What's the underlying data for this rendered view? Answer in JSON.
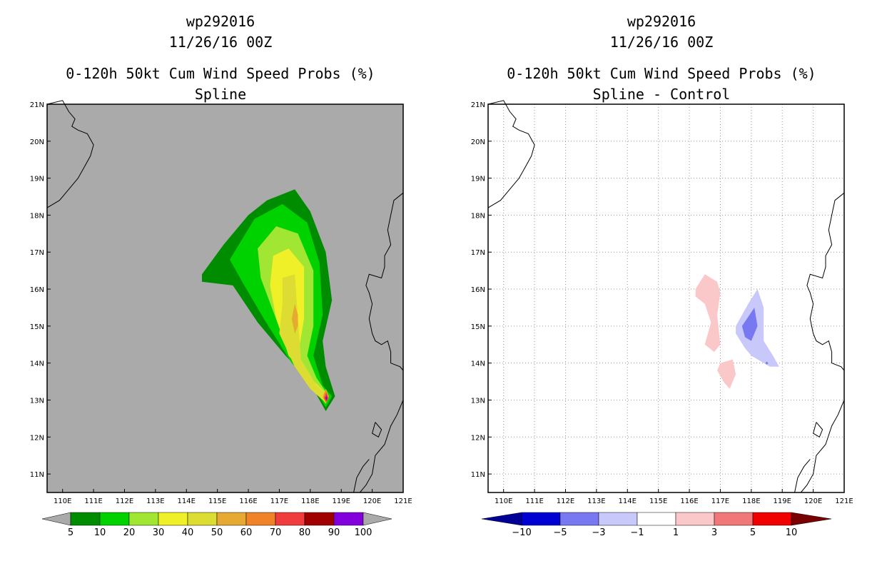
{
  "colors": {
    "prob_scale": [
      "#008c00",
      "#00d200",
      "#a0e632",
      "#f0f028",
      "#dcdc32",
      "#e6aa32",
      "#f08228",
      "#f03c3c",
      "#a00000",
      "#8200dc"
    ],
    "diff_scale": [
      "#0000d2",
      "#7878f0",
      "#c8c8fa",
      "#ffffff",
      "#fac8c8",
      "#f07878",
      "#f00000"
    ],
    "diff_low": "#000096",
    "diff_high": "#780000",
    "ocean": "#aaaaaa"
  },
  "chart_data": [
    {
      "type": "heatmap",
      "storm_id": "wp292016",
      "datetime": "11/26/16 00Z",
      "title": "0-120h 50kt Cum Wind Speed Probs (%)",
      "subtitle": "Spline",
      "xlim": [
        109.5,
        121
      ],
      "ylim": [
        10.5,
        21
      ],
      "x_ticks": [
        "110E",
        "111E",
        "112E",
        "113E",
        "114E",
        "115E",
        "116E",
        "117E",
        "118E",
        "119E",
        "120E",
        "121E"
      ],
      "y_ticks": [
        "11N",
        "12N",
        "13N",
        "14N",
        "15N",
        "16N",
        "17N",
        "18N",
        "19N",
        "20N",
        "21N"
      ],
      "grid": false,
      "contour_levels": [
        5,
        10,
        20,
        30,
        40,
        50,
        60,
        70,
        80,
        90,
        100
      ],
      "colorbar_labels": [
        "5",
        "10",
        "20",
        "30",
        "40",
        "50",
        "60",
        "70",
        "80",
        "90",
        "100"
      ],
      "regions": [
        {
          "level": 5,
          "points": [
            [
              114.5,
              16.4
            ],
            [
              115.2,
              17.2
            ],
            [
              116.0,
              18.0
            ],
            [
              116.6,
              18.4
            ],
            [
              117.5,
              18.7
            ],
            [
              118.0,
              18.1
            ],
            [
              118.5,
              17.0
            ],
            [
              118.7,
              15.7
            ],
            [
              118.4,
              14.6
            ],
            [
              118.5,
              13.9
            ],
            [
              118.8,
              13.1
            ],
            [
              118.5,
              12.7
            ],
            [
              117.9,
              13.6
            ],
            [
              117.2,
              14.2
            ],
            [
              116.3,
              15.1
            ],
            [
              115.5,
              16.1
            ],
            [
              114.5,
              16.2
            ]
          ]
        },
        {
          "level": 10,
          "points": [
            [
              115.4,
              16.8
            ],
            [
              116.2,
              17.9
            ],
            [
              117.1,
              18.3
            ],
            [
              117.9,
              17.8
            ],
            [
              118.3,
              16.7
            ],
            [
              118.4,
              15.3
            ],
            [
              118.1,
              14.2
            ],
            [
              118.4,
              13.4
            ],
            [
              118.7,
              13.1
            ],
            [
              118.5,
              12.8
            ],
            [
              118.0,
              13.5
            ],
            [
              117.4,
              14.0
            ],
            [
              116.5,
              15.2
            ],
            [
              115.8,
              16.2
            ]
          ]
        },
        {
          "level": 20,
          "points": [
            [
              116.3,
              17.1
            ],
            [
              116.9,
              17.7
            ],
            [
              117.6,
              17.5
            ],
            [
              118.1,
              16.5
            ],
            [
              118.1,
              15.0
            ],
            [
              117.9,
              14.2
            ],
            [
              118.2,
              13.6
            ],
            [
              118.6,
              13.1
            ],
            [
              118.5,
              12.9
            ],
            [
              117.9,
              13.6
            ],
            [
              117.3,
              14.3
            ],
            [
              116.8,
              15.4
            ],
            [
              116.4,
              16.3
            ]
          ]
        },
        {
          "level": 30,
          "points": [
            [
              116.8,
              16.9
            ],
            [
              117.3,
              17.1
            ],
            [
              117.8,
              16.6
            ],
            [
              117.8,
              15.2
            ],
            [
              117.6,
              14.2
            ],
            [
              118.0,
              13.6
            ],
            [
              118.6,
              13.1
            ],
            [
              118.5,
              12.9
            ],
            [
              117.9,
              13.6
            ],
            [
              117.3,
              14.2
            ],
            [
              116.9,
              15.2
            ],
            [
              116.7,
              16.1
            ]
          ]
        },
        {
          "level": 40,
          "points": [
            [
              117.1,
              16.3
            ],
            [
              117.5,
              16.4
            ],
            [
              117.6,
              15.2
            ],
            [
              117.7,
              14.1
            ],
            [
              118.2,
              13.4
            ],
            [
              118.6,
              13.1
            ],
            [
              118.4,
              13.0
            ],
            [
              118.0,
              13.3
            ],
            [
              117.5,
              13.9
            ],
            [
              117.0,
              14.8
            ],
            [
              117.1,
              15.6
            ]
          ]
        },
        {
          "level": 50,
          "points": [
            [
              117.5,
              15.6
            ],
            [
              117.6,
              15.3
            ],
            [
              117.6,
              15.0
            ],
            [
              117.5,
              14.8
            ],
            [
              117.4,
              15.2
            ]
          ]
        },
        {
          "level": 50,
          "points": [
            [
              118.5,
              13.3
            ],
            [
              118.6,
              13.1
            ],
            [
              118.5,
              12.9
            ],
            [
              118.4,
              13.1
            ]
          ]
        },
        {
          "level": 60,
          "points": [
            [
              118.5,
              13.25
            ],
            [
              118.6,
              13.05
            ],
            [
              118.5,
              12.95
            ],
            [
              118.42,
              13.05
            ]
          ]
        },
        {
          "level": 70,
          "points": [
            [
              118.52,
              13.2
            ],
            [
              118.58,
              13.05
            ],
            [
              118.52,
              12.95
            ],
            [
              118.45,
              13.05
            ]
          ]
        },
        {
          "level": 90,
          "points": [
            [
              118.52,
              13.12
            ],
            [
              118.55,
              13.05
            ],
            [
              118.52,
              12.99
            ],
            [
              118.49,
              13.05
            ]
          ]
        }
      ]
    },
    {
      "type": "heatmap",
      "storm_id": "wp292016",
      "datetime": "11/26/16 00Z",
      "title": "0-120h 50kt Cum Wind Speed Probs (%)",
      "subtitle": "Spline - Control",
      "xlim": [
        109.5,
        121
      ],
      "ylim": [
        10.5,
        21
      ],
      "x_ticks": [
        "110E",
        "111E",
        "112E",
        "113E",
        "114E",
        "115E",
        "116E",
        "117E",
        "118E",
        "119E",
        "120E",
        "121E"
      ],
      "y_ticks": [
        "11N",
        "12N",
        "13N",
        "14N",
        "15N",
        "16N",
        "17N",
        "18N",
        "19N",
        "20N",
        "21N"
      ],
      "grid": true,
      "contour_levels": [
        -10,
        -5,
        -3,
        -1,
        1,
        3,
        5,
        10
      ],
      "colorbar_labels": [
        "-10",
        "-5",
        "-3",
        "-1",
        "1",
        "3",
        "5",
        "10"
      ],
      "regions": [
        {
          "level": 1,
          "points": [
            [
              116.2,
              16.0
            ],
            [
              116.5,
              16.4
            ],
            [
              116.9,
              16.2
            ],
            [
              117.0,
              15.9
            ],
            [
              116.9,
              15.3
            ],
            [
              117.0,
              14.5
            ],
            [
              116.8,
              14.3
            ],
            [
              116.5,
              14.5
            ],
            [
              116.7,
              15.1
            ],
            [
              116.5,
              15.6
            ],
            [
              116.2,
              15.8
            ]
          ]
        },
        {
          "level": 1,
          "points": [
            [
              117.0,
              14.0
            ],
            [
              117.4,
              14.1
            ],
            [
              117.5,
              13.7
            ],
            [
              117.3,
              13.3
            ],
            [
              117.1,
              13.5
            ],
            [
              116.9,
              13.8
            ]
          ]
        },
        {
          "level": -1,
          "points": [
            [
              117.5,
              15.0
            ],
            [
              117.9,
              15.6
            ],
            [
              118.2,
              16.0
            ],
            [
              118.4,
              15.5
            ],
            [
              118.4,
              14.6
            ],
            [
              118.7,
              14.2
            ],
            [
              118.9,
              13.9
            ],
            [
              118.6,
              13.9
            ],
            [
              118.0,
              14.2
            ],
            [
              117.8,
              14.4
            ],
            [
              117.5,
              14.8
            ]
          ]
        },
        {
          "level": -3,
          "points": [
            [
              117.7,
              15.0
            ],
            [
              118.1,
              15.5
            ],
            [
              118.2,
              15.0
            ],
            [
              118.0,
              14.6
            ],
            [
              117.8,
              14.7
            ]
          ]
        },
        {
          "level": -3,
          "points": [
            [
              118.5,
              14.04
            ],
            [
              118.55,
              14.0
            ],
            [
              118.5,
              13.96
            ],
            [
              118.45,
              14.0
            ]
          ]
        }
      ]
    }
  ]
}
